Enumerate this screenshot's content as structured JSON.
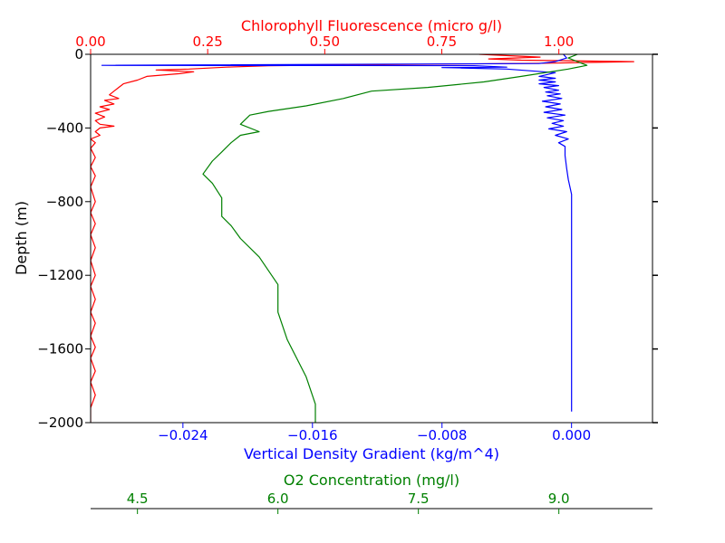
{
  "chart_data": {
    "type": "line",
    "ylabel": "Depth (m)",
    "ylim": [
      -2000,
      0
    ],
    "yticks": [
      0,
      -400,
      -800,
      -1200,
      -1600,
      -2000
    ],
    "ytick_labels": [
      "0",
      "−400",
      "−800",
      "−1200",
      "−1600",
      "−2000"
    ],
    "axes": [
      {
        "key": "chl",
        "position": "top",
        "label": "Chlorophyll Fluorescence (micro g/l)",
        "color": "#ff0000",
        "lim": [
          0.0,
          1.2
        ],
        "ticks": [
          0.0,
          0.25,
          0.5,
          0.75,
          1.0
        ],
        "tick_labels": [
          "0.00",
          "0.25",
          "0.50",
          "0.75",
          "1.00"
        ]
      },
      {
        "key": "dens",
        "position": "bottom",
        "label": "Vertical Density Gradient (kg/m^4)",
        "color": "#0000ff",
        "lim": [
          -0.0297,
          0.005
        ],
        "ticks": [
          -0.024,
          -0.016,
          -0.008,
          0.0
        ],
        "tick_labels": [
          "−0.024",
          "−0.016",
          "−0.008",
          "0.000"
        ]
      },
      {
        "key": "o2",
        "position": "bottom-offset",
        "label": "O2 Concentration (mg/l)",
        "color": "#008000",
        "lim": [
          4.0,
          10.0
        ],
        "ticks": [
          4.5,
          6.0,
          7.5,
          9.0
        ],
        "tick_labels": [
          "4.5",
          "6.0",
          "7.5",
          "9.0"
        ]
      }
    ],
    "series": [
      {
        "axis": "chl",
        "color": "#ff0000",
        "points": [
          [
            0.83,
            0
          ],
          [
            0.96,
            -15
          ],
          [
            0.85,
            -25
          ],
          [
            0.92,
            -32
          ],
          [
            1.16,
            -40
          ],
          [
            0.98,
            -48
          ],
          [
            0.68,
            -55
          ],
          [
            0.38,
            -62
          ],
          [
            0.29,
            -70
          ],
          [
            0.21,
            -80
          ],
          [
            0.14,
            -85
          ],
          [
            0.22,
            -95
          ],
          [
            0.19,
            -105
          ],
          [
            0.12,
            -120
          ],
          [
            0.1,
            -140
          ],
          [
            0.07,
            -160
          ],
          [
            0.06,
            -180
          ],
          [
            0.05,
            -200
          ],
          [
            0.04,
            -220
          ],
          [
            0.06,
            -240
          ],
          [
            0.03,
            -250
          ],
          [
            0.05,
            -270
          ],
          [
            0.02,
            -285
          ],
          [
            0.04,
            -300
          ],
          [
            0.01,
            -320
          ],
          [
            0.03,
            -340
          ],
          [
            0.01,
            -360
          ],
          [
            0.02,
            -380
          ],
          [
            0.05,
            -390
          ],
          [
            0.02,
            -400
          ],
          [
            0.01,
            -420
          ],
          [
            0.02,
            -440
          ],
          [
            0.0,
            -460
          ],
          [
            0.01,
            -480
          ],
          [
            0.0,
            -510
          ],
          [
            0.01,
            -560
          ],
          [
            0.0,
            -610
          ],
          [
            0.01,
            -660
          ],
          [
            0.0,
            -720
          ],
          [
            0.01,
            -800
          ],
          [
            0.0,
            -860
          ],
          [
            0.01,
            -920
          ],
          [
            0.0,
            -980
          ],
          [
            0.01,
            -1050
          ],
          [
            0.0,
            -1120
          ],
          [
            0.01,
            -1200
          ],
          [
            0.0,
            -1260
          ],
          [
            0.01,
            -1330
          ],
          [
            0.0,
            -1400
          ],
          [
            0.01,
            -1460
          ],
          [
            0.0,
            -1530
          ],
          [
            0.01,
            -1590
          ],
          [
            0.0,
            -1650
          ],
          [
            0.01,
            -1720
          ],
          [
            0.0,
            -1780
          ],
          [
            0.01,
            -1850
          ],
          [
            0.0,
            -1920
          ],
          [
            0.0,
            -2000
          ]
        ]
      },
      {
        "axis": "dens",
        "color": "#0000ff",
        "points": [
          [
            -0.0005,
            0
          ],
          [
            -0.0003,
            -20
          ],
          [
            -0.001,
            -40
          ],
          [
            -0.002,
            -50
          ],
          [
            -0.029,
            -60
          ],
          [
            -0.006,
            -62
          ],
          [
            -0.004,
            -70
          ],
          [
            -0.008,
            -72
          ],
          [
            -0.004,
            -80
          ],
          [
            -0.001,
            -100
          ],
          [
            -0.002,
            -120
          ],
          [
            -0.001,
            -130
          ],
          [
            -0.002,
            -140
          ],
          [
            -0.001,
            -150
          ],
          [
            -0.002,
            -160
          ],
          [
            -0.0008,
            -170
          ],
          [
            -0.0017,
            -180
          ],
          [
            -0.0008,
            -195
          ],
          [
            -0.0016,
            -205
          ],
          [
            -0.0007,
            -215
          ],
          [
            -0.0015,
            -225
          ],
          [
            -0.0006,
            -240
          ],
          [
            -0.0018,
            -255
          ],
          [
            -0.0007,
            -270
          ],
          [
            -0.0016,
            -285
          ],
          [
            -0.0006,
            -300
          ],
          [
            -0.0017,
            -315
          ],
          [
            -0.0004,
            -330
          ],
          [
            -0.0015,
            -345
          ],
          [
            -0.0005,
            -360
          ],
          [
            -0.0012,
            -375
          ],
          [
            -0.0005,
            -390
          ],
          [
            -0.0014,
            -405
          ],
          [
            -0.0003,
            -420
          ],
          [
            -0.001,
            -440
          ],
          [
            -0.0002,
            -460
          ],
          [
            -0.0008,
            -480
          ],
          [
            -0.0004,
            -500
          ],
          [
            -0.0004,
            -550
          ],
          [
            -0.0003,
            -620
          ],
          [
            -0.0002,
            -680
          ],
          [
            0.0,
            -760
          ],
          [
            0.0,
            -850
          ],
          [
            0.0,
            -950
          ],
          [
            0.0,
            -1050
          ],
          [
            0.0,
            -1200
          ],
          [
            0.0,
            -1400
          ],
          [
            0.0,
            -1600
          ],
          [
            0.0,
            -1800
          ],
          [
            0.0,
            -1940
          ]
        ]
      },
      {
        "axis": "o2",
        "color": "#008000",
        "points": [
          [
            9.2,
            0
          ],
          [
            9.1,
            -20
          ],
          [
            9.3,
            -60
          ],
          [
            9.1,
            -80
          ],
          [
            8.6,
            -120
          ],
          [
            8.2,
            -150
          ],
          [
            7.6,
            -180
          ],
          [
            7.0,
            -200
          ],
          [
            6.7,
            -240
          ],
          [
            6.3,
            -280
          ],
          [
            5.9,
            -310
          ],
          [
            5.7,
            -330
          ],
          [
            5.6,
            -380
          ],
          [
            5.8,
            -420
          ],
          [
            5.6,
            -440
          ],
          [
            5.5,
            -480
          ],
          [
            5.4,
            -530
          ],
          [
            5.3,
            -580
          ],
          [
            5.2,
            -650
          ],
          [
            5.3,
            -700
          ],
          [
            5.4,
            -780
          ],
          [
            5.4,
            -880
          ],
          [
            5.5,
            -930
          ],
          [
            5.6,
            -1000
          ],
          [
            5.8,
            -1100
          ],
          [
            6.0,
            -1250
          ],
          [
            6.0,
            -1400
          ],
          [
            6.1,
            -1550
          ],
          [
            6.3,
            -1750
          ],
          [
            6.4,
            -1900
          ],
          [
            6.4,
            -2000
          ]
        ]
      }
    ]
  }
}
